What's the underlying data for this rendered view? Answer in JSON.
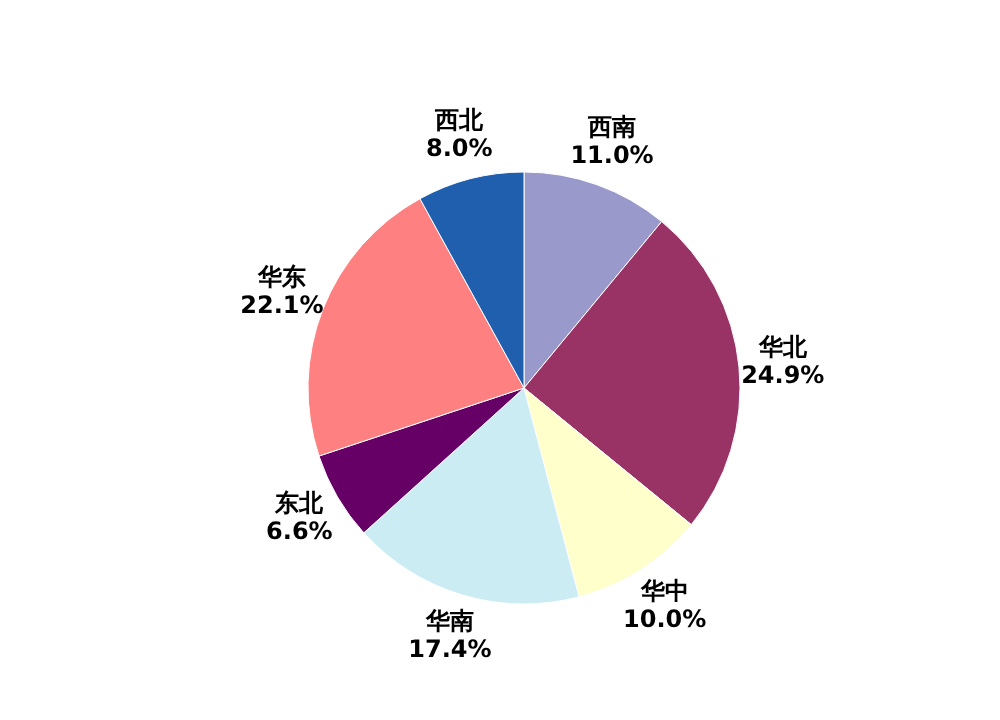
{
  "chart_data": {
    "type": "pie",
    "categories": [
      "西南",
      "华北",
      "华中",
      "华南",
      "东北",
      "华东",
      "西北"
    ],
    "values": [
      11.0,
      24.9,
      10.0,
      17.4,
      6.6,
      22.1,
      8.0
    ],
    "colors": [
      "#9999cc",
      "#993366",
      "#ffffcc",
      "#ccecf3",
      "#660066",
      "#ff8080",
      "#1f5fad"
    ],
    "value_labels": [
      "11.0%",
      "24.9%",
      "10.0%",
      "17.4%",
      "6.6%",
      "22.1%",
      "8.0%"
    ]
  }
}
